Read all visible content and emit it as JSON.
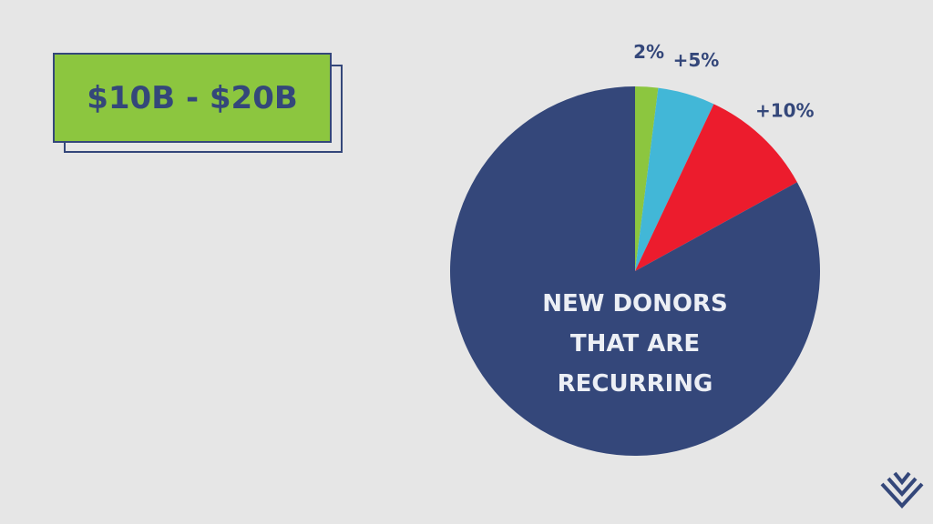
{
  "badge": "$10B - $20B",
  "chart_data": {
    "type": "pie",
    "categories": [
      null,
      null,
      null,
      "NEW DONORS THAT ARE RECURRING"
    ],
    "values": [
      2,
      5,
      10,
      83
    ],
    "value_labels": [
      "2%",
      "+5%",
      "+10%",
      null
    ],
    "colors": [
      "#8cc63f",
      "#42b7d7",
      "#ec1c2d",
      "#34477a"
    ]
  }
}
